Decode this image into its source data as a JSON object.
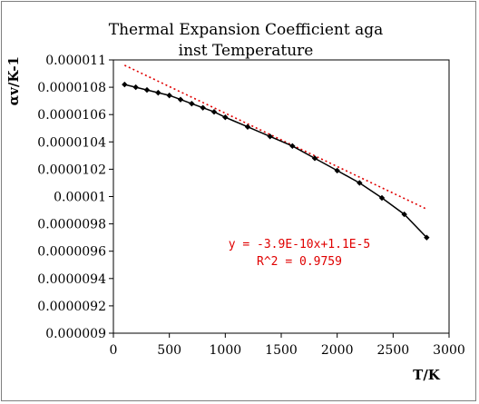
{
  "chart_data": {
    "type": "scatter",
    "title_lines": [
      "Thermal Expansion Coefficient aga",
      "inst Temperature"
    ],
    "xlabel": "T/K",
    "ylabel": "αv/K-1",
    "xlim": [
      0,
      3000
    ],
    "ylim": [
      9e-06,
      1.1e-05
    ],
    "x_ticks": [
      0,
      500,
      1000,
      1500,
      2000,
      2500,
      3000
    ],
    "x_tick_labels": [
      "0",
      "500",
      "1000",
      "1500",
      "2000",
      "2500",
      "3000"
    ],
    "y_ticks": [
      9e-06,
      9.2e-06,
      9.4e-06,
      9.6e-06,
      9.8e-06,
      1e-05,
      1.02e-05,
      1.04e-05,
      1.06e-05,
      1.08e-05,
      1.1e-05
    ],
    "y_tick_labels": [
      "0.000009",
      "0.0000092",
      "0.0000094",
      "0.0000096",
      "0.0000098",
      "0.00001",
      "0.0000102",
      "0.0000104",
      "0.0000106",
      "0.0000108",
      "0.000011"
    ],
    "grid": false,
    "legend": "none",
    "series": [
      {
        "x": [
          100,
          200,
          300,
          400,
          500,
          600,
          700,
          800,
          900,
          1000,
          1200,
          1400,
          1600,
          1800,
          2000,
          2200,
          2400,
          2600,
          2800
        ],
        "y": [
          1.082e-05,
          1.08e-05,
          1.078e-05,
          1.076e-05,
          1.074e-05,
          1.071e-05,
          1.068e-05,
          1.065e-05,
          1.062e-05,
          1.058e-05,
          1.051e-05,
          1.044e-05,
          1.037e-05,
          1.028e-05,
          1.019e-05,
          1.01e-05,
          9.99e-06,
          9.87e-06,
          9.7e-06
        ],
        "color": "#000000"
      }
    ],
    "trendline": {
      "equation_text": "y = -3.9E-10x+1.1E-5",
      "r2_text": "R^2 = 0.9759",
      "slope": -3.9e-10,
      "intercept": 1.1e-05,
      "x_range": [
        100,
        2800
      ],
      "color": "#e00000",
      "style": "dotted"
    }
  }
}
